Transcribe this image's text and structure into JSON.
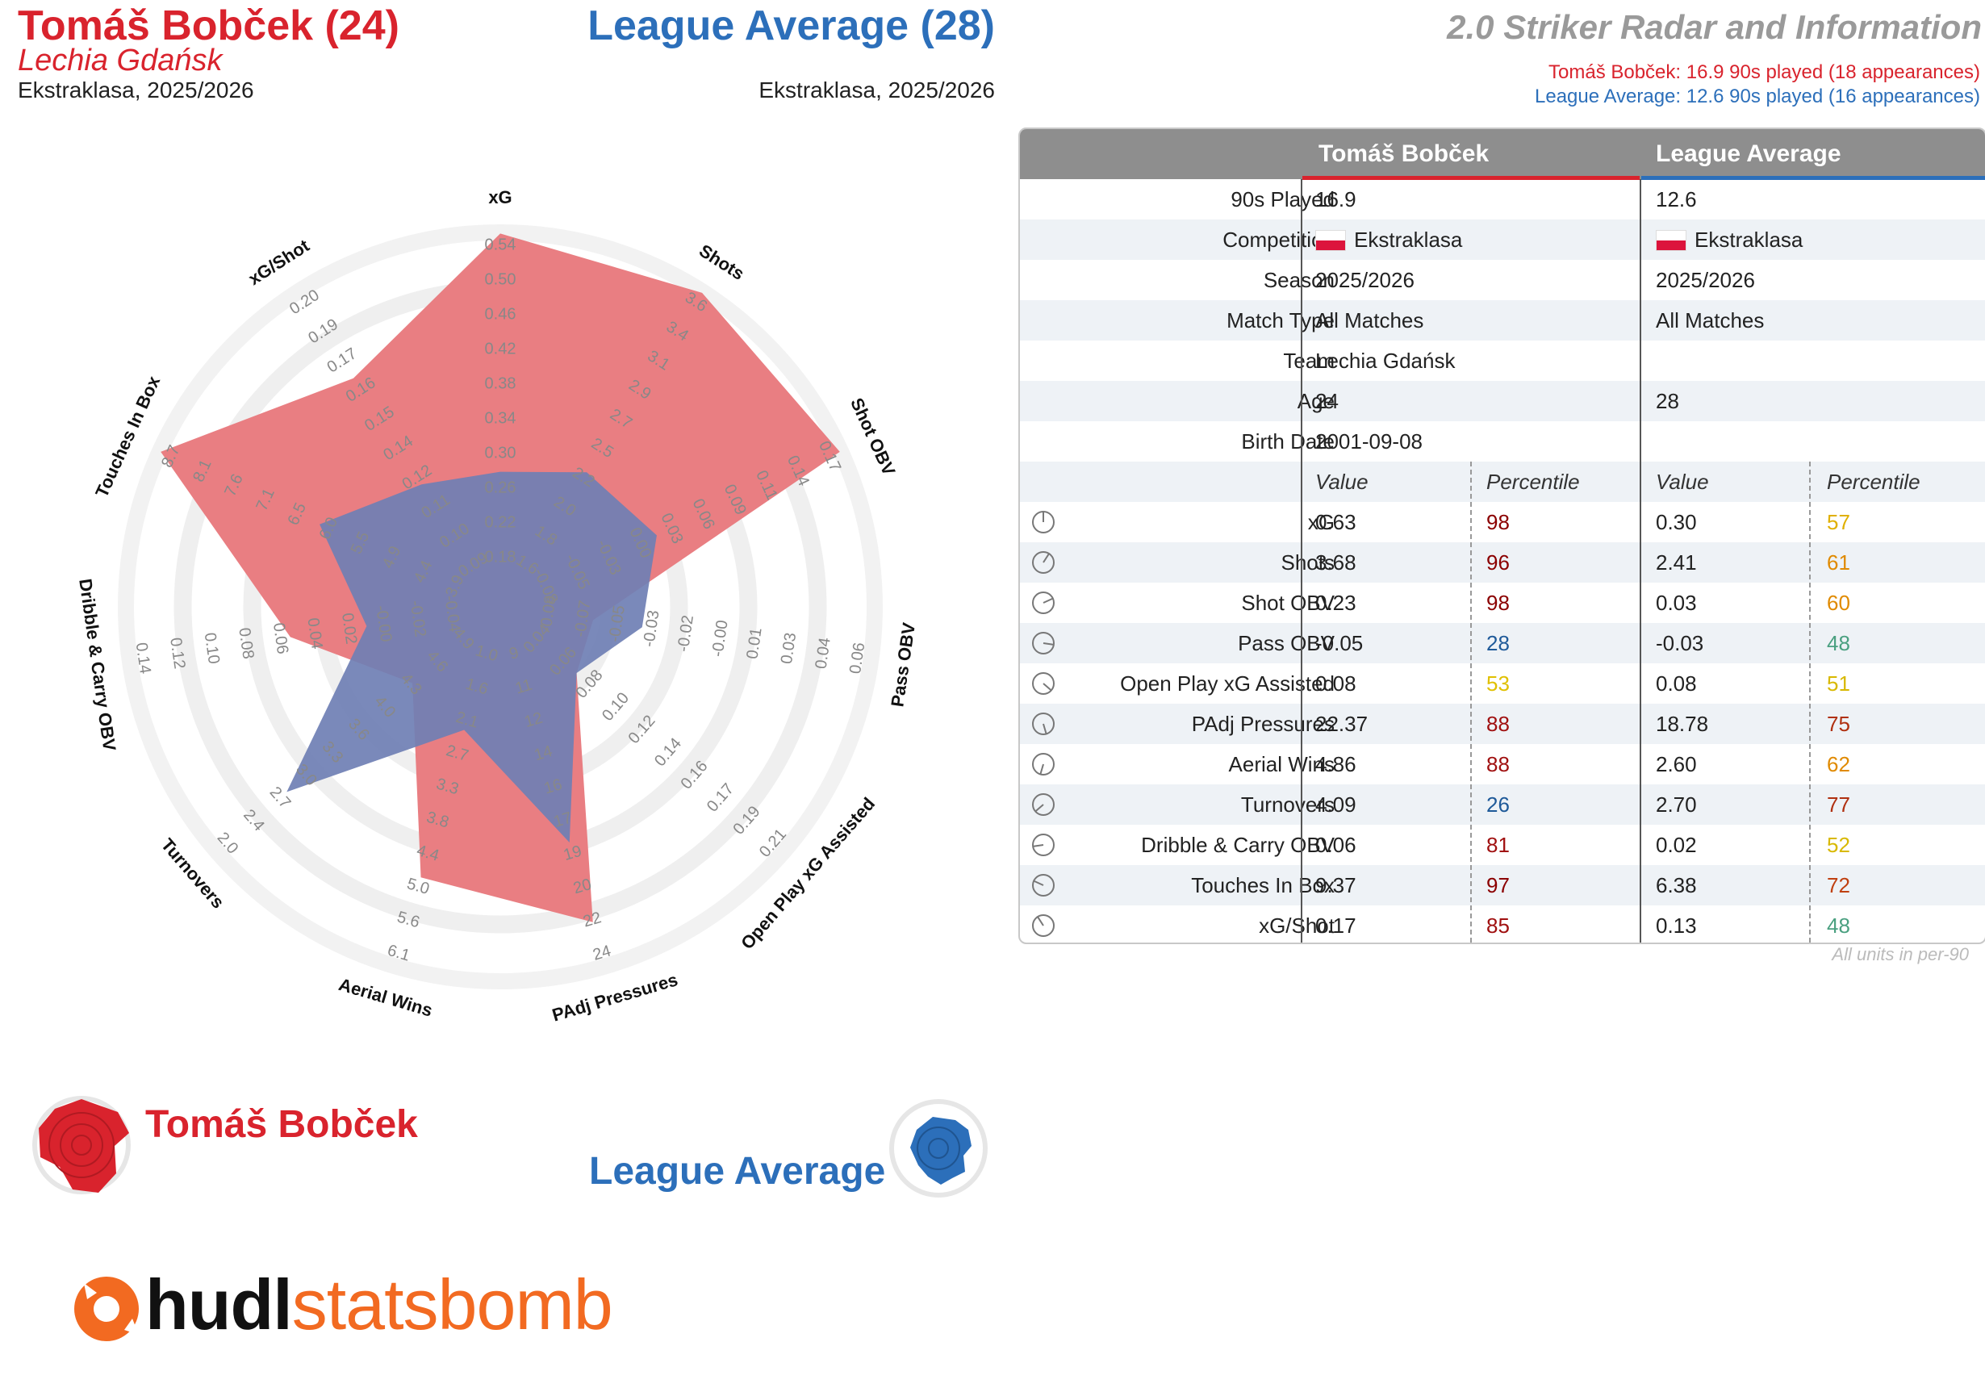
{
  "header": {
    "player_title": "Tomáš Bobček (24)",
    "player_team": "Lechia Gdańsk",
    "player_competition": "Ekstraklasa, 2025/2026",
    "average_title": "League Average (28)",
    "average_competition": "Ekstraklasa, 2025/2026",
    "radar_title": "2.0 Striker Radar and Information",
    "player_minutes": "Tomáš Bobček: 16.9 90s played (18 appearances)",
    "average_minutes": "League Average: 12.6 90s played (16 appearances)"
  },
  "colors": {
    "player": "#d9232d",
    "average": "#2c6fba",
    "player_fill": "#e8777b",
    "average_fill": "#6f7fb4"
  },
  "chart_data": {
    "type": "radar",
    "axes": [
      {
        "name": "xG",
        "ticks": [
          "0.18",
          "0.22",
          "0.26",
          "0.30",
          "0.34",
          "0.38",
          "0.42",
          "0.46",
          "0.50",
          "0.54"
        ]
      },
      {
        "name": "Shots",
        "ticks": [
          "1.6",
          "1.8",
          "2.0",
          "2.2",
          "2.5",
          "2.7",
          "2.9",
          "3.1",
          "3.4",
          "3.6"
        ]
      },
      {
        "name": "Shot OBV",
        "ticks": [
          "-0.08",
          "-0.05",
          "-0.03",
          "0.00",
          "0.03",
          "0.06",
          "0.09",
          "0.11",
          "0.14",
          "0.17"
        ]
      },
      {
        "name": "Pass OBV",
        "ticks": [
          "-0.08",
          "-0.07",
          "-0.05",
          "-0.03",
          "-0.02",
          "-0.00",
          "0.01",
          "0.03",
          "0.04",
          "0.06"
        ]
      },
      {
        "name": "Open Play xG Assisted",
        "ticks": [
          "0.04",
          "0.06",
          "0.08",
          "0.10",
          "0.12",
          "0.14",
          "0.16",
          "0.17",
          "0.19",
          "0.21"
        ]
      },
      {
        "name": "PAdj Pressures",
        "ticks": [
          "9",
          "11",
          "12",
          "14",
          "16",
          "17",
          "19",
          "20",
          "22",
          "24"
        ]
      },
      {
        "name": "Aerial Wins",
        "ticks": [
          "1.0",
          "1.6",
          "2.1",
          "2.7",
          "3.3",
          "3.8",
          "4.4",
          "5.0",
          "5.6",
          "6.1"
        ]
      },
      {
        "name": "Turnovers",
        "ticks": [
          "4.9",
          "4.6",
          "4.3",
          "4.0",
          "3.6",
          "3.3",
          "3.0",
          "2.7",
          "2.4",
          "2.0"
        ]
      },
      {
        "name": "Dribble & Carry OBV",
        "ticks": [
          "-0.04",
          "-0.02",
          "-0.00",
          "0.02",
          "0.04",
          "0.06",
          "0.08",
          "0.10",
          "0.12",
          "0.14"
        ]
      },
      {
        "name": "Touches In Box",
        "ticks": [
          "3.9",
          "4.4",
          "4.9",
          "5.5",
          "6.0",
          "6.5",
          "7.1",
          "7.6",
          "8.1",
          "8.7"
        ]
      },
      {
        "name": "xG/Shot",
        "ticks": [
          "0.09",
          "0.10",
          "0.11",
          "0.12",
          "0.14",
          "0.15",
          "0.16",
          "0.17",
          "0.19",
          "0.20"
        ]
      }
    ],
    "series": [
      {
        "name": "Tomáš Bobček",
        "values": [
          0.63,
          3.68,
          0.23,
          -0.05,
          0.08,
          22.37,
          4.86,
          4.09,
          0.06,
          9.37,
          0.17
        ]
      },
      {
        "name": "League Average",
        "values": [
          0.3,
          2.41,
          0.03,
          -0.03,
          0.08,
          18.78,
          2.6,
          2.7,
          0.02,
          6.38,
          0.13
        ]
      }
    ]
  },
  "legend": {
    "player": "Tomáš Bobček",
    "average": "League Average"
  },
  "logo": {
    "part1": "hudl",
    "part2": "statsbomb"
  },
  "table": {
    "col_player": "Tomáš Bobček",
    "col_average": "League Average",
    "info_rows": [
      {
        "label": "90s Played",
        "player": "16.9",
        "average": "12.6"
      },
      {
        "label": "Competition",
        "player": "Ekstraklasa",
        "average": "Ekstraklasa"
      },
      {
        "label": "Season",
        "player": "2025/2026",
        "average": "2025/2026"
      },
      {
        "label": "Match Type",
        "player": "All Matches",
        "average": "All Matches"
      },
      {
        "label": "Team",
        "player": "Lechia Gdańsk",
        "average": ""
      },
      {
        "label": "Age",
        "player": "24",
        "average": "28"
      },
      {
        "label": "Birth Date",
        "player": "2001-09-08",
        "average": ""
      }
    ],
    "sub_value": "Value",
    "sub_percentile": "Percentile",
    "stat_rows": [
      {
        "label": "xG",
        "pv": "0.63",
        "pp": "98",
        "ppc": "#8b0000",
        "av": "0.30",
        "ap": "57",
        "apc": "#e0b000"
      },
      {
        "label": "Shots",
        "pv": "3.68",
        "pp": "96",
        "ppc": "#8b0000",
        "av": "2.41",
        "ap": "61",
        "apc": "#e08a00"
      },
      {
        "label": "Shot OBV",
        "pv": "0.23",
        "pp": "98",
        "ppc": "#8b0000",
        "av": "0.03",
        "ap": "60",
        "apc": "#e08a00"
      },
      {
        "label": "Pass OBV",
        "pv": "-0.05",
        "pp": "28",
        "ppc": "#1f5a99",
        "av": "-0.03",
        "ap": "48",
        "apc": "#4aa080"
      },
      {
        "label": "Open Play xG Assisted",
        "pv": "0.08",
        "pp": "53",
        "ppc": "#e0c000",
        "av": "0.08",
        "ap": "51",
        "apc": "#d8b800"
      },
      {
        "label": "PAdj Pressures",
        "pv": "22.37",
        "pp": "88",
        "ppc": "#a01010",
        "av": "18.78",
        "ap": "75",
        "apc": "#b03010"
      },
      {
        "label": "Aerial Wins",
        "pv": "4.86",
        "pp": "88",
        "ppc": "#a01010",
        "av": "2.60",
        "ap": "62",
        "apc": "#e08a00"
      },
      {
        "label": "Turnovers",
        "pv": "4.09",
        "pp": "26",
        "ppc": "#1f5a99",
        "av": "2.70",
        "ap": "77",
        "apc": "#b03010"
      },
      {
        "label": "Dribble & Carry OBV",
        "pv": "0.06",
        "pp": "81",
        "ppc": "#a01010",
        "av": "0.02",
        "ap": "52",
        "apc": "#d8b800"
      },
      {
        "label": "Touches In Box",
        "pv": "9.37",
        "pp": "97",
        "ppc": "#8b0000",
        "av": "6.38",
        "ap": "72",
        "apc": "#c04010"
      },
      {
        "label": "xG/Shot",
        "pv": "0.17",
        "pp": "85",
        "ppc": "#a01010",
        "av": "0.13",
        "ap": "48",
        "apc": "#4aa080"
      }
    ],
    "note": "All units in per-90"
  }
}
